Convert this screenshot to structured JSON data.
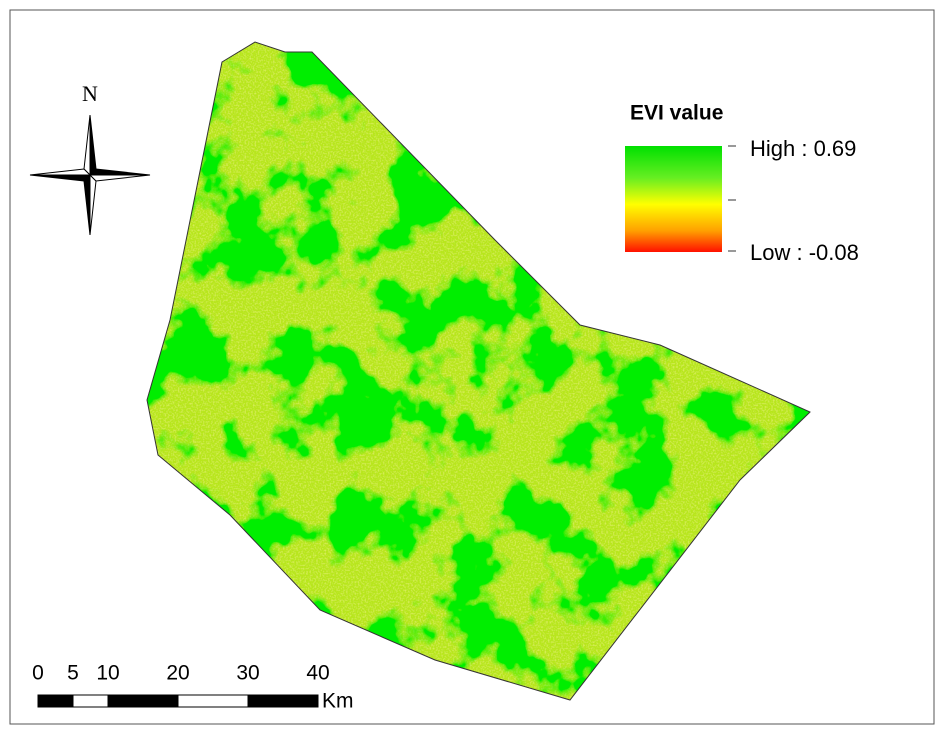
{
  "map": {
    "north_label": "N",
    "legend": {
      "title": "EVI value",
      "high": "High : 0.69",
      "low": "Low : -0.08"
    },
    "scale_bar": {
      "ticks": [
        0,
        5,
        10,
        20,
        30,
        40
      ],
      "unit": "Km"
    }
  }
}
